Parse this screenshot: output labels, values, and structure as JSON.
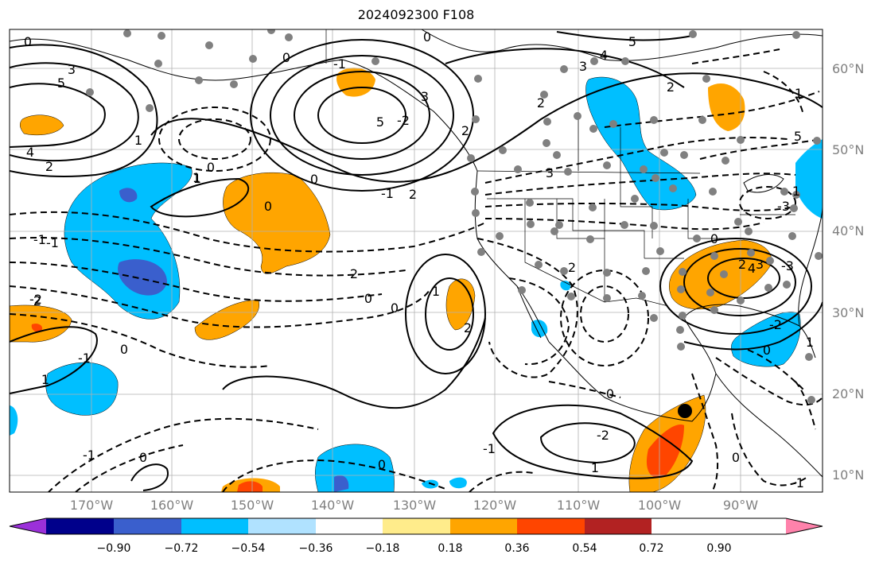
{
  "title": "2024092300 F108",
  "lat_labels": [
    "60°N",
    "50°N",
    "40°N",
    "30°N",
    "20°N",
    "10°N"
  ],
  "lon_labels": [
    "170°W",
    "160°W",
    "150°W",
    "140°W",
    "130°W",
    "120°W",
    "110°W",
    "100°W",
    "90°W"
  ],
  "colorbar": {
    "ticks": [
      "−0.90",
      "−0.72",
      "−0.54",
      "−0.36",
      "−0.18",
      "0.18",
      "0.36",
      "0.54",
      "0.72",
      "0.90"
    ],
    "colors": [
      "#9b30d9",
      "#00008b",
      "#3a5fcd",
      "#00bfff",
      "#b0e2ff",
      "#ffffff",
      "#ffec8b",
      "#ffa500",
      "#ff4500",
      "#b22222",
      "#ff82ab"
    ]
  },
  "contour_labels": [
    "0",
    "5",
    "4",
    "2",
    "1",
    "3",
    "5",
    "0",
    "1",
    "-1",
    "3",
    "5",
    "2",
    "0",
    "4",
    "2",
    "1",
    "2",
    "3",
    "5",
    "3",
    "0",
    "2",
    "-1",
    "-2",
    "-3",
    "0",
    "-3",
    "2",
    "3",
    "4",
    "-2",
    "0",
    "1",
    "0",
    "-1",
    "1",
    "-1",
    "2",
    "0",
    "1",
    "0",
    "2",
    "0",
    "-1",
    "1",
    "-2",
    "0",
    "2",
    "0",
    "1",
    "-1",
    "-1",
    "-1",
    "0",
    "-2",
    "0",
    "2",
    "1",
    "0"
  ],
  "marker": "storm-position"
}
